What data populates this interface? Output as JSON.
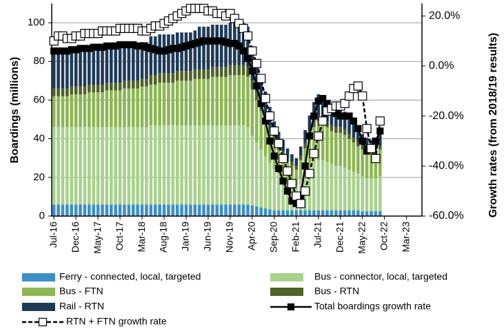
{
  "chart_data": {
    "type": "bar",
    "stacked": true,
    "grid": true,
    "y_label": "Boardings (millions)",
    "y2_label": "Growth rates (from 2018/19 results)",
    "ylim": [
      0,
      110
    ],
    "yticks": [
      0,
      20,
      40,
      60,
      80,
      100
    ],
    "y2lim": [
      -60,
      25
    ],
    "y2ticks": [
      {
        "value": -60,
        "label": "-60.0%"
      },
      {
        "value": -40,
        "label": "-40.0%"
      },
      {
        "value": -20,
        "label": "-20.0%"
      },
      {
        "value": 0,
        "label": "0.0%"
      },
      {
        "value": 20,
        "label": "20.0%"
      }
    ],
    "categories": [
      "Jul-16",
      null,
      null,
      null,
      null,
      "Dec-16",
      null,
      null,
      null,
      null,
      "May-17",
      null,
      null,
      null,
      null,
      "Oct-17",
      null,
      null,
      null,
      null,
      "Mar-18",
      null,
      null,
      null,
      null,
      "Aug-18",
      null,
      null,
      null,
      null,
      "Jan-19",
      null,
      null,
      null,
      null,
      "Jun-19",
      null,
      null,
      null,
      null,
      "Nov-19",
      null,
      null,
      null,
      null,
      "Apr-20",
      null,
      null,
      null,
      null,
      "Sep-20",
      null,
      null,
      null,
      null,
      "Feb-21",
      null,
      null,
      null,
      null,
      "Jul-21",
      null,
      null,
      null,
      null,
      "Dec-21",
      null,
      null,
      null,
      null,
      "May-22",
      null,
      null,
      null,
      null,
      "Oct-22",
      null,
      null,
      null,
      null,
      "Mar-23",
      null,
      null,
      null
    ],
    "series": [
      {
        "name": "Ferry - connected, local, targeted",
        "color": "#3d8fc6",
        "values": [
          6,
          6,
          6,
          6,
          6,
          6,
          6,
          6,
          6,
          6,
          6,
          6,
          6,
          6,
          6,
          6,
          6,
          6,
          6,
          6,
          6,
          6,
          6,
          6,
          6,
          6,
          6,
          6,
          6,
          6,
          6,
          6,
          6,
          6,
          6,
          6,
          6,
          6,
          6,
          6,
          6,
          6,
          6,
          6,
          6,
          5.5,
          5,
          4.5,
          4,
          3.5,
          3,
          3,
          3,
          3,
          3,
          3,
          3,
          3,
          3,
          3,
          3,
          3,
          3,
          3,
          3,
          3,
          3,
          3,
          3,
          3,
          2.5,
          2.5,
          2.5,
          2.5,
          2.5,
          null,
          null,
          null,
          null,
          null,
          null,
          null,
          null,
          null
        ]
      },
      {
        "name": "Bus - connector, local, targeted",
        "color": "#a9d18e",
        "values": [
          40,
          40,
          40,
          40,
          40,
          40,
          40,
          40,
          40,
          40,
          40,
          40,
          40,
          40,
          40,
          40,
          40,
          40,
          40,
          40,
          40,
          40,
          41,
          41,
          41,
          41,
          41,
          41,
          41,
          41,
          41,
          41,
          41,
          41,
          41,
          41,
          41,
          41,
          41,
          41,
          41,
          41,
          41,
          41,
          40,
          36,
          33,
          30,
          27,
          24,
          21,
          19,
          17,
          15,
          14,
          13,
          16,
          19,
          22,
          25,
          26,
          26,
          25,
          24,
          23,
          23,
          22,
          21,
          20,
          19,
          18,
          17,
          17,
          17,
          18,
          null,
          null,
          null,
          null,
          null,
          null,
          null,
          null,
          null
        ]
      },
      {
        "name": "Bus - FTN",
        "color": "#8cb653",
        "values": [
          16,
          16,
          16,
          16,
          17,
          17,
          17,
          17,
          18,
          18,
          18,
          18,
          19,
          19,
          19,
          19,
          20,
          20,
          20,
          20,
          21,
          21,
          21,
          21,
          22,
          22,
          22,
          22,
          23,
          23,
          23,
          23,
          24,
          24,
          24,
          24,
          25,
          25,
          25,
          25,
          26,
          26,
          26,
          26,
          26,
          24,
          22,
          20,
          18,
          16,
          14,
          12,
          11,
          10,
          9,
          8,
          10,
          13,
          16,
          18,
          20,
          19,
          18,
          17,
          17,
          17,
          17,
          16,
          15,
          14,
          14,
          13,
          13,
          13,
          14,
          null,
          null,
          null,
          null,
          null,
          null,
          null,
          null,
          null
        ]
      },
      {
        "name": "Bus - RTN",
        "color": "#4f6228",
        "values": [
          4,
          4,
          4,
          4,
          4,
          4,
          4,
          4,
          4,
          4,
          4,
          4,
          4,
          4,
          4,
          4,
          4,
          4,
          4,
          4,
          4,
          4,
          5,
          5,
          5,
          5,
          5,
          5,
          5,
          5,
          5,
          5,
          5,
          5,
          5,
          5,
          5,
          5,
          5,
          5,
          5,
          5,
          5,
          5,
          5,
          4.5,
          4,
          4,
          3.5,
          3,
          3,
          2.5,
          2.5,
          2,
          2,
          2,
          2,
          2.5,
          3,
          3,
          3,
          3,
          3,
          3,
          3,
          3,
          3,
          2.5,
          2.5,
          2.5,
          2,
          2,
          2,
          2,
          2,
          null,
          null,
          null,
          null,
          null,
          null,
          null,
          null,
          null
        ]
      },
      {
        "name": "Rail - RTN",
        "color": "#1f3a57",
        "values": [
          18,
          18,
          18,
          18,
          18,
          18,
          18,
          18,
          18,
          18,
          18,
          19,
          19,
          19,
          19,
          19,
          19,
          19,
          19,
          19,
          19,
          19,
          20,
          20,
          20,
          20,
          20,
          20,
          20,
          20,
          20,
          20,
          20,
          22,
          22,
          22,
          22,
          22,
          22,
          22,
          22,
          22,
          22,
          22,
          21,
          18,
          16,
          14,
          12,
          10,
          8,
          7,
          6,
          5,
          4,
          4,
          5,
          7,
          8,
          10,
          11,
          11,
          10,
          9,
          9,
          9,
          9,
          8,
          7,
          7,
          6,
          6,
          5,
          6,
          6,
          null,
          null,
          null,
          null,
          null,
          null,
          null,
          null,
          null
        ]
      },
      {
        "name": "Total boardings growth rate",
        "axis": "y2",
        "color": "#000000",
        "marker_fill": "#000000",
        "dashed": false,
        "values": [
          6,
          6,
          6,
          6,
          6.5,
          6.5,
          7,
          7,
          7,
          7.5,
          7.5,
          7.5,
          8,
          8,
          8,
          8.5,
          8.5,
          8.5,
          8.5,
          8,
          8,
          7.5,
          7,
          6.5,
          6,
          6,
          6.5,
          7,
          7,
          7.5,
          8,
          8.5,
          9,
          9.5,
          10,
          10,
          10,
          10,
          10,
          9.5,
          9,
          9,
          8,
          6,
          3,
          -2,
          -8,
          -15,
          -22,
          -30,
          -36,
          -41,
          -46,
          -50,
          -54,
          -55,
          -52,
          -40,
          -28,
          -20,
          -14,
          -13,
          -15,
          -17,
          -19,
          -20,
          -20,
          -20,
          -22,
          -25,
          -30,
          -34,
          -33,
          -30,
          -26,
          null,
          null,
          null,
          null,
          null,
          null,
          null,
          null,
          null
        ]
      },
      {
        "name": "RTN + FTN growth rate",
        "axis": "y2",
        "color": "#000000",
        "marker_fill": "#ffffff",
        "dashed": true,
        "values": [
          10,
          12,
          12,
          11,
          11,
          12,
          12,
          13,
          13,
          13,
          13,
          14,
          14,
          14,
          14,
          15,
          15,
          15,
          15,
          15,
          14,
          14,
          15,
          16,
          16,
          17,
          18,
          19,
          20,
          21,
          22,
          23,
          23,
          23,
          23,
          22,
          22,
          21,
          21,
          20,
          21,
          19,
          17,
          15,
          12,
          6,
          1,
          -5,
          -13,
          -20,
          -26,
          -31,
          -37,
          -42,
          -47,
          -52,
          -55,
          -50,
          -43,
          -35,
          -28,
          -22,
          -18,
          -17,
          -16,
          -16,
          -15,
          -12,
          -9,
          -8,
          -12,
          -25,
          -33,
          -37,
          -22,
          null,
          null,
          null,
          null,
          null,
          null,
          null,
          null,
          null
        ]
      }
    ]
  }
}
